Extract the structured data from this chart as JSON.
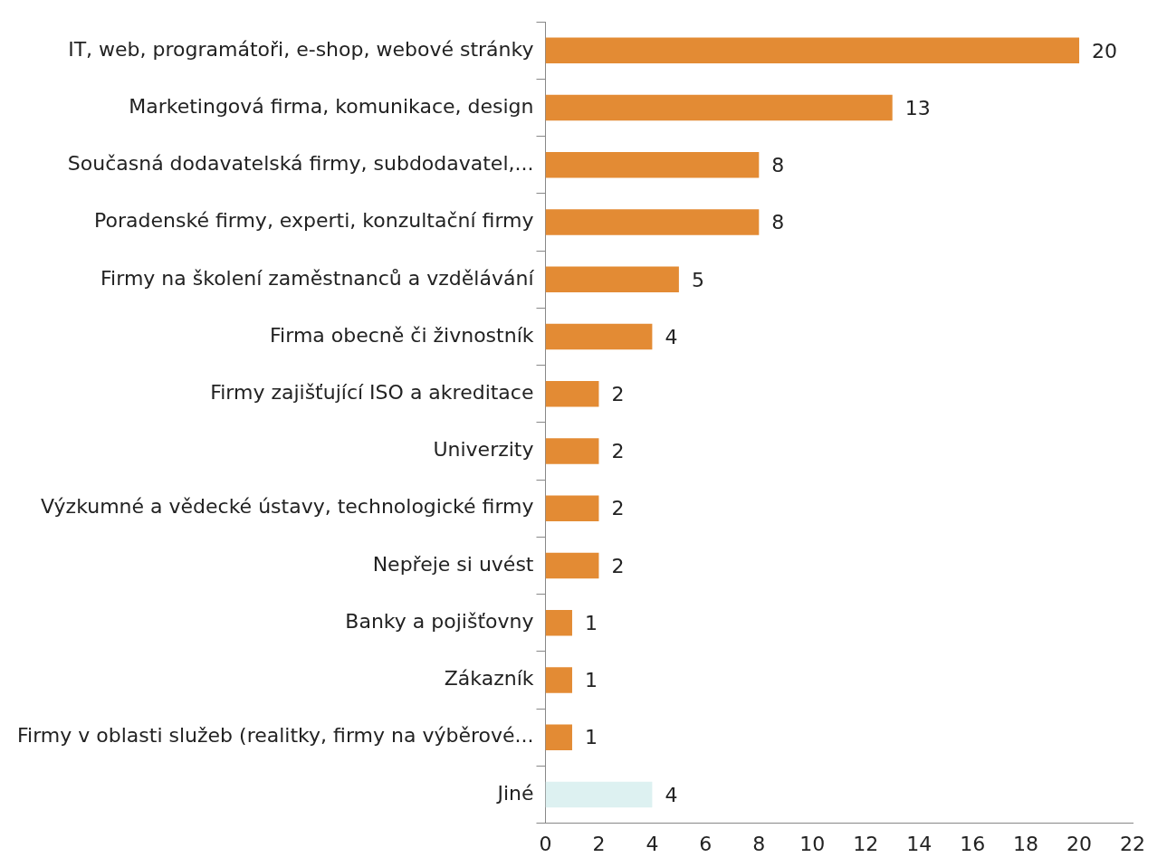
{
  "chart_data": {
    "type": "bar",
    "orientation": "horizontal",
    "categories": [
      "IT, web, programátoři, e-shop, webové stránky",
      "Marketingová firma, komunikace, design",
      "Současná dodavatelská firmy, subdodavatel,...",
      "Poradenské firmy, experti, konzultační firmy",
      "Firmy na školení zaměstnanců a vzdělávání",
      "Firma obecně či živnostník",
      "Firmy zajišťující ISO a akreditace",
      "Univerzity",
      "Výzkumné a vědecké ústavy, technologické firmy",
      "Nepřeje si uvést",
      "Banky a pojišťovny",
      "Zákazník",
      "Firmy v oblasti služeb (realitky, firmy na výběrové...",
      "Jiné"
    ],
    "values": [
      20,
      13,
      8,
      8,
      5,
      4,
      2,
      2,
      2,
      2,
      1,
      1,
      1,
      4
    ],
    "colors": [
      "#e38b34",
      "#e38b34",
      "#e38b34",
      "#e38b34",
      "#e38b34",
      "#e38b34",
      "#e38b34",
      "#e38b34",
      "#e38b34",
      "#e38b34",
      "#e38b34",
      "#e38b34",
      "#e38b34",
      "#ddf1f1"
    ],
    "xlim": [
      0,
      22
    ],
    "xticks": [
      0,
      2,
      4,
      6,
      8,
      10,
      12,
      14,
      16,
      18,
      20,
      22
    ],
    "data_labels": true
  }
}
